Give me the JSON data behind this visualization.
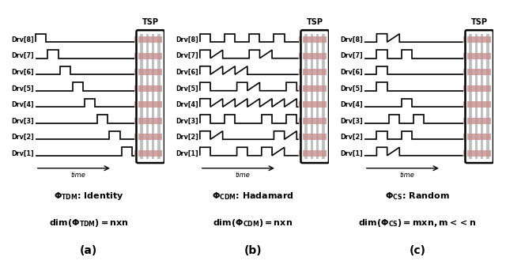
{
  "bg_color": "#ffffff",
  "signal_color": "#000000",
  "tsp_border_color": "#000000",
  "tsp_fill_color": "#c0c0c0",
  "salmon_color": "#c89090",
  "drv_labels": [
    "Drv[8]",
    "Drv[7]",
    "Drv[6]",
    "Drv[5]",
    "Drv[4]",
    "Drv[3]",
    "Drv[2]",
    "Drv[1]"
  ],
  "tdm_pulses": [
    [
      1,
      0,
      0,
      0,
      0,
      0,
      0,
      0
    ],
    [
      0,
      1,
      0,
      0,
      0,
      0,
      0,
      0
    ],
    [
      0,
      0,
      1,
      0,
      0,
      0,
      0,
      0
    ],
    [
      0,
      0,
      0,
      1,
      0,
      0,
      0,
      0
    ],
    [
      0,
      0,
      0,
      0,
      1,
      0,
      0,
      0
    ],
    [
      0,
      0,
      0,
      0,
      0,
      1,
      0,
      0
    ],
    [
      0,
      0,
      0,
      0,
      0,
      0,
      1,
      0
    ],
    [
      0,
      0,
      0,
      0,
      0,
      0,
      0,
      1
    ]
  ],
  "cdm_pulses": [
    [
      1,
      0,
      1,
      0,
      1,
      0,
      1,
      0
    ],
    [
      1,
      1,
      0,
      0,
      1,
      1,
      0,
      0
    ],
    [
      1,
      1,
      1,
      1,
      0,
      0,
      0,
      0
    ],
    [
      1,
      0,
      0,
      1,
      1,
      0,
      0,
      1
    ],
    [
      1,
      1,
      1,
      1,
      1,
      1,
      1,
      1
    ],
    [
      1,
      0,
      1,
      0,
      0,
      1,
      0,
      1
    ],
    [
      1,
      1,
      0,
      0,
      0,
      0,
      1,
      1
    ],
    [
      1,
      0,
      0,
      1,
      0,
      1,
      1,
      0
    ]
  ],
  "cs_pulses": [
    [
      0,
      1,
      1,
      0,
      0,
      0,
      0,
      0
    ],
    [
      0,
      1,
      0,
      1,
      0,
      0,
      0,
      0
    ],
    [
      0,
      1,
      0,
      0,
      0,
      0,
      0,
      0
    ],
    [
      0,
      1,
      0,
      0,
      0,
      0,
      0,
      0
    ],
    [
      0,
      0,
      0,
      1,
      0,
      0,
      0,
      0
    ],
    [
      0,
      0,
      1,
      0,
      1,
      0,
      0,
      0
    ],
    [
      0,
      1,
      0,
      1,
      0,
      0,
      0,
      0
    ],
    [
      0,
      1,
      1,
      0,
      0,
      0,
      0,
      0
    ]
  ],
  "panel_labels": [
    "(a)",
    "(b)",
    "(c)"
  ]
}
